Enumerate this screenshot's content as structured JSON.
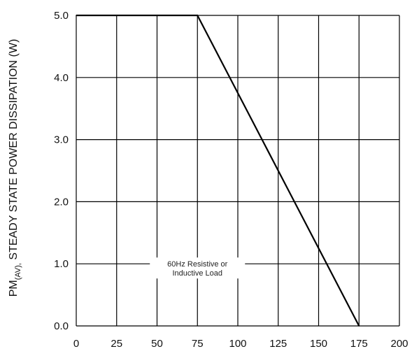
{
  "chart_data": {
    "type": "line",
    "title": "",
    "xlabel": "",
    "ylabel": {
      "prefix": "PM",
      "subscript": "(AV),",
      "text": " STEADY STATE POWER DISSIPATION (W)"
    },
    "xlim": [
      0,
      200
    ],
    "ylim": [
      0,
      5
    ],
    "x_ticks": [
      0,
      25,
      50,
      75,
      100,
      125,
      150,
      175,
      200
    ],
    "x_tick_labels": [
      "0",
      "25",
      "50",
      "75",
      "100",
      "125",
      "150",
      "175",
      "200"
    ],
    "y_ticks": [
      0,
      1,
      2,
      3,
      4,
      5
    ],
    "y_tick_labels": [
      "0.0",
      "1.0",
      "2.0",
      "3.0",
      "4.0",
      "5.0"
    ],
    "grid": true,
    "series": [
      {
        "x": [
          0,
          75,
          175
        ],
        "y": [
          5.0,
          5.0,
          0.0
        ]
      }
    ],
    "annotation": {
      "lines": [
        "60Hz Resistive or",
        "Inductive Load"
      ],
      "x": 75,
      "y": 1.0
    }
  },
  "colors": {
    "line": "#000000",
    "grid": "#000000",
    "background": "#ffffff"
  }
}
